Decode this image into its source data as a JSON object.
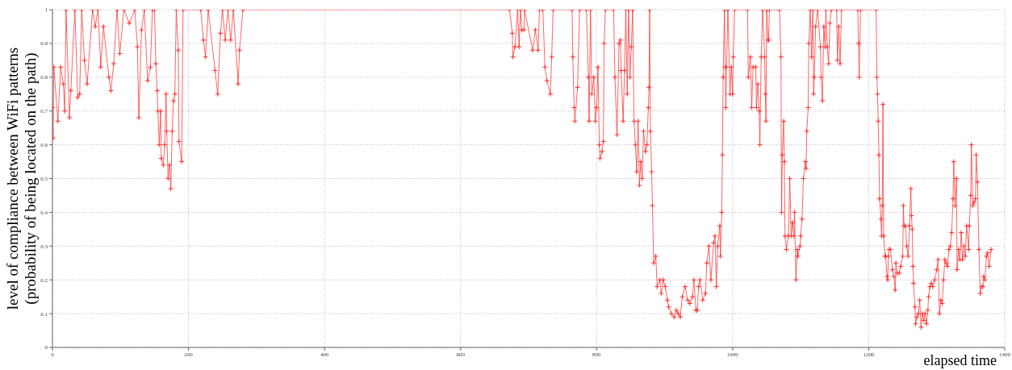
{
  "chart_data": {
    "type": "line",
    "xlabel": "elapsed time",
    "ylabel": "level of compliance between WiFi patterns (probability of being located on the path)",
    "xlim": [
      0,
      1400
    ],
    "ylim": [
      0,
      1
    ],
    "xticks": [
      0,
      200,
      400,
      600,
      800,
      1000,
      1200,
      1400
    ],
    "yticks": [
      0,
      0.1,
      0.2,
      0.3,
      0.4,
      0.5,
      0.6,
      0.7,
      0.8,
      0.9,
      1
    ],
    "grid": true,
    "marker": "cross",
    "line_style": "solid",
    "series": [
      {
        "color": "#ff3030",
        "x": [
          0,
          1,
          2,
          8,
          12,
          16,
          18,
          20,
          25,
          27,
          33,
          37,
          40,
          43,
          47,
          51,
          59,
          63,
          67,
          71,
          75,
          83,
          86,
          90,
          95,
          99,
          105,
          113,
          121,
          125,
          127,
          131,
          135,
          140,
          144,
          147,
          150,
          152,
          154,
          155,
          157,
          159,
          160,
          163,
          165,
          167,
          168,
          170,
          172,
          174,
          176,
          178,
          180,
          182,
          185,
          186,
          190,
          192,
          218,
          222,
          225,
          229,
          239,
          243,
          247,
          250,
          254,
          258,
          262,
          266,
          273,
          275,
          280,
          672,
          676,
          677,
          680,
          684,
          686,
          688,
          690,
          693,
          694,
          706,
          710,
          714,
          716,
          721,
          724,
          727,
          732,
          734,
          736,
          764,
          765,
          767,
          768,
          772,
          775,
          785,
          788,
          789,
          791,
          793,
          796,
          798,
          800,
          802,
          804,
          805,
          808,
          810,
          811,
          813,
          825,
          827,
          830,
          833,
          835,
          836,
          839,
          841,
          843,
          845,
          847,
          849,
          851,
          853,
          855,
          857,
          859,
          861,
          863,
          865,
          867,
          869,
          872,
          874,
          876,
          877,
          878,
          879,
          881,
          882,
          884,
          887,
          889,
          893,
          895,
          898,
          901,
          904,
          906,
          910,
          914,
          917,
          920,
          923,
          926,
          930,
          934,
          937,
          941,
          943,
          946,
          948,
          950,
          952,
          956,
          960,
          962,
          965,
          968,
          972,
          974,
          976,
          978,
          981,
          982,
          984,
          985,
          986,
          988,
          989,
          990,
          991,
          993,
          996,
          998,
          1000,
          1001,
          1003,
          1022,
          1023,
          1026,
          1028,
          1030,
          1034,
          1035,
          1037,
          1039,
          1040,
          1042,
          1044,
          1047,
          1048,
          1049,
          1050,
          1052,
          1053,
          1054,
          1069,
          1071,
          1072,
          1073,
          1075,
          1076,
          1077,
          1079,
          1082,
          1084,
          1086,
          1088,
          1090,
          1091,
          1093,
          1095,
          1096,
          1099,
          1100,
          1102,
          1104,
          1107,
          1108,
          1109,
          1111,
          1112,
          1114,
          1116,
          1118,
          1119,
          1120,
          1122,
          1125,
          1129,
          1130,
          1132,
          1134,
          1136,
          1137,
          1139,
          1141,
          1143,
          1145,
          1153,
          1154,
          1156,
          1158,
          1160,
          1184,
          1185,
          1186,
          1188,
          1211,
          1212,
          1213,
          1214,
          1215,
          1216,
          1218,
          1219,
          1220,
          1221,
          1222,
          1224,
          1225,
          1227,
          1228,
          1229,
          1230,
          1232,
          1235,
          1237,
          1239,
          1240,
          1242,
          1245,
          1247,
          1250,
          1251,
          1252,
          1254,
          1256,
          1258,
          1260,
          1262,
          1263,
          1264,
          1265,
          1266,
          1268,
          1269,
          1271,
          1273,
          1275,
          1277,
          1279,
          1281,
          1283,
          1285,
          1287,
          1288,
          1290,
          1292,
          1294,
          1297,
          1300,
          1302,
          1304,
          1306,
          1308,
          1310,
          1312,
          1314,
          1316,
          1318,
          1320,
          1322,
          1324,
          1325,
          1327,
          1329,
          1330,
          1332,
          1334,
          1336,
          1338,
          1340,
          1342,
          1344,
          1347,
          1348,
          1350,
          1351,
          1353,
          1355,
          1357,
          1358,
          1360,
          1362,
          1364,
          1366,
          1368,
          1369,
          1371,
          1373,
          1375,
          1377,
          1380
        ],
        "values": [
          0.71,
          0.62,
          0.83,
          0.67,
          0.83,
          0.78,
          0.7,
          1,
          0.68,
          0.76,
          1,
          0.74,
          0.75,
          1,
          0.85,
          0.78,
          1,
          0.95,
          1,
          0.83,
          0.95,
          0.8,
          0.76,
          0.84,
          1,
          0.87,
          1,
          0.96,
          1,
          0.89,
          0.68,
          0.94,
          1,
          0.79,
          0.83,
          1,
          1,
          0.84,
          0.76,
          0.7,
          0.6,
          0.7,
          0.56,
          0.54,
          0.6,
          0.75,
          0.64,
          0.5,
          0.54,
          0.47,
          0.64,
          0.73,
          0.75,
          1,
          0.88,
          0.61,
          0.55,
          1,
          1,
          0.91,
          0.86,
          1,
          0.82,
          0.75,
          0.93,
          1,
          0.91,
          1,
          0.91,
          1,
          0.78,
          0.88,
          1,
          1,
          0.93,
          0.86,
          0.89,
          1,
          0.89,
          1,
          0.94,
          0.94,
          1,
          0.88,
          0.94,
          0.88,
          1,
          1,
          0.83,
          0.79,
          0.75,
          0.86,
          1,
          1,
          0.86,
          0.71,
          0.67,
          0.77,
          1,
          1,
          0.8,
          0.67,
          1,
          0.75,
          0.8,
          0.67,
          0.71,
          0.83,
          0.6,
          0.56,
          0.58,
          0.61,
          0.9,
          1,
          1,
          0.8,
          0.63,
          0.9,
          0.91,
          0.82,
          0.67,
          0.82,
          1,
          0.75,
          1,
          0.8,
          0.89,
          1,
          0.67,
          0.6,
          0.52,
          0.67,
          0.48,
          0.55,
          0.5,
          0.64,
          0.58,
          0.6,
          0.71,
          0.77,
          1,
          0.64,
          0.52,
          0.42,
          0.25,
          0.27,
          0.18,
          0.2,
          0.16,
          0.2,
          0.18,
          0.14,
          0.12,
          0.1,
          0.09,
          0.11,
          0.1,
          0.09,
          0.15,
          0.18,
          0.14,
          0.13,
          0.15,
          0.2,
          0.11,
          0.11,
          0.18,
          0.2,
          0.14,
          0.16,
          0.25,
          0.3,
          0.2,
          0.31,
          0.33,
          0.18,
          0.3,
          0.36,
          0.27,
          0.4,
          0.57,
          0.8,
          1,
          0.83,
          0.71,
          0.83,
          1,
          0.75,
          0.83,
          0.75,
          0.86,
          1,
          1,
          0.8,
          0.86,
          0.71,
          0.83,
          0.83,
          0.71,
          0.78,
          0.7,
          0.6,
          0.86,
          1,
          0.86,
          0.75,
          0.67,
          1,
          0.91,
          0.91,
          1,
          1,
          0.86,
          0.4,
          0.57,
          0.67,
          0.55,
          0.33,
          0.29,
          0.33,
          0.5,
          0.33,
          0.37,
          0.33,
          0.4,
          0.2,
          0.29,
          0.27,
          0.3,
          0.33,
          0.38,
          0.5,
          0.55,
          0.53,
          0.64,
          0.71,
          0.9,
          1,
          0.86,
          1,
          0.75,
          0.8,
          0.95,
          1,
          0.89,
          0.8,
          0.73,
          0.95,
          0.89,
          1,
          0.89,
          0.84,
          0.96,
          1,
          1,
          0.85,
          0.95,
          0.84,
          1,
          1,
          0.9,
          0.8,
          1,
          1,
          0.8,
          0.75,
          0.67,
          0.57,
          0.44,
          0.38,
          0.33,
          0.42,
          0.72,
          0.33,
          0.27,
          0.27,
          0.21,
          0.2,
          0.27,
          0.29,
          0.29,
          0.23,
          0.21,
          0.17,
          0.25,
          0.22,
          0.22,
          0.24,
          0.27,
          0.42,
          0.36,
          0.36,
          0.3,
          0.27,
          0.36,
          0.47,
          0.39,
          0.35,
          0.24,
          0.19,
          0.12,
          0.07,
          0.09,
          0.1,
          0.14,
          0.06,
          0.1,
          0.08,
          0.1,
          0.07,
          0.11,
          0.15,
          0.18,
          0.19,
          0.18,
          0.2,
          0.23,
          0.26,
          0.1,
          0.14,
          0.13,
          0.2,
          0.26,
          0.25,
          0.24,
          0.29,
          0.3,
          0.34,
          0.44,
          0.55,
          0.42,
          0.5,
          0.23,
          0.29,
          0.26,
          0.34,
          0.26,
          0.3,
          0.27,
          0.36,
          0.29,
          0.36,
          0.45,
          0.6,
          0.42,
          0.43,
          0.44,
          0.57,
          0.49,
          0.29,
          0.16,
          0.18,
          0.18,
          0.21,
          0.2,
          0.27,
          0.28,
          0.24,
          0.29
        ]
      }
    ]
  }
}
